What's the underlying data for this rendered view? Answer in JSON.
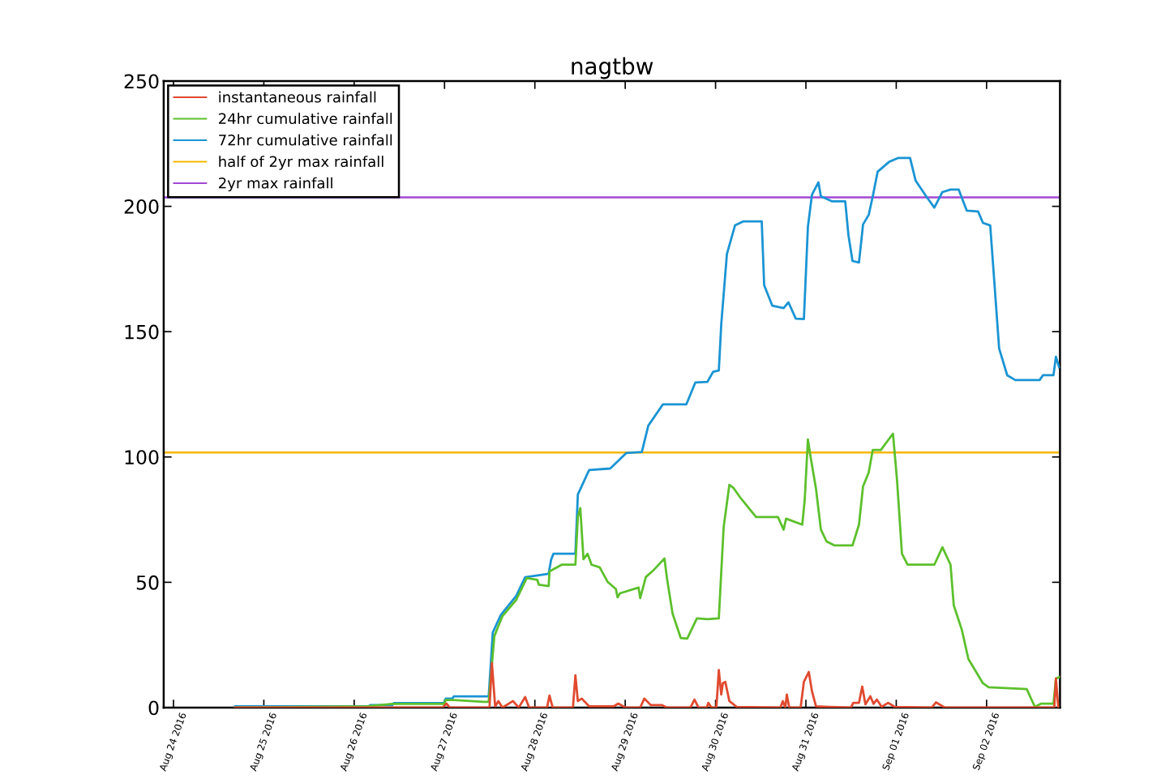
{
  "chart_data": {
    "type": "line",
    "title": "nagtbw",
    "xlim": [
      "2016-08-23T21:24",
      "2016-09-02T19:30"
    ],
    "xticks": [
      {
        "value": "2016-08-24",
        "label": "Aug 24 2016"
      },
      {
        "value": "2016-08-25",
        "label": "Aug 25 2016"
      },
      {
        "value": "2016-08-26",
        "label": "Aug 26 2016"
      },
      {
        "value": "2016-08-27",
        "label": "Aug 27 2016"
      },
      {
        "value": "2016-08-28",
        "label": "Aug 28 2016"
      },
      {
        "value": "2016-08-29",
        "label": "Aug 29 2016"
      },
      {
        "value": "2016-08-30",
        "label": "Aug 30 2016"
      },
      {
        "value": "2016-08-31",
        "label": "Aug 31 2016"
      },
      {
        "value": "2016-09-01",
        "label": "Sep 01 2016"
      },
      {
        "value": "2016-09-02",
        "label": "Sep 02 2016"
      }
    ],
    "ylim": [
      0,
      250
    ],
    "yticks": [
      0,
      50,
      100,
      150,
      200,
      250
    ],
    "grid": false,
    "legend": "top left",
    "marker": "none",
    "line_style": "solid",
    "series": [
      {
        "name": "instantaneous rainfall",
        "color": "#e04a2f",
        "x": [
          "2016-08-24T16:22",
          "2016-08-26T23:28",
          "2016-08-27T00:32",
          "2016-08-27T01:24",
          "2016-08-27T11:57",
          "2016-08-27T12:35",
          "2016-08-27T13:27",
          "2016-08-27T14:19",
          "2016-08-27T15:23",
          "2016-08-27T18:11",
          "2016-08-27T19:42",
          "2016-08-27T21:25",
          "2016-08-27T22:29",
          "2016-08-28T03:14",
          "2016-08-28T03:53",
          "2016-08-28T04:44",
          "2016-08-28T10:07",
          "2016-08-28T10:46",
          "2016-08-28T11:25",
          "2016-08-28T12:29",
          "2016-08-28T14:25",
          "2016-08-28T20:53",
          "2016-08-28T22:10",
          "2016-08-29T00:06",
          "2016-08-29T03:59",
          "2016-08-29T05:04",
          "2016-08-29T06:47",
          "2016-08-29T09:48",
          "2016-08-29T11:05",
          "2016-08-29T17:20",
          "2016-08-29T18:24",
          "2016-08-29T19:29",
          "2016-08-29T21:38",
          "2016-08-29T22:04",
          "2016-08-29T22:56",
          "2016-08-30T00:13",
          "2016-08-30T00:52",
          "2016-08-30T01:31",
          "2016-08-30T01:56",
          "2016-08-30T02:35",
          "2016-08-30T03:40",
          "2016-08-30T05:36",
          "2016-08-30T17:13",
          "2016-08-30T17:52",
          "2016-08-30T18:31",
          "2016-08-30T18:56",
          "2016-08-30T19:35",
          "2016-08-30T22:36",
          "2016-08-30T23:28",
          "2016-08-31T00:46",
          "2016-08-31T01:37",
          "2016-08-31T02:41",
          "2016-08-31T11:57",
          "2016-08-31T12:35",
          "2016-08-31T14:06",
          "2016-08-31T14:58",
          "2016-08-31T15:49",
          "2016-08-31T17:07",
          "2016-08-31T17:58",
          "2016-08-31T18:50",
          "2016-08-31T20:08",
          "2016-08-31T21:51",
          "2016-08-31T23:34",
          "2016-09-01T09:28",
          "2016-09-01T10:33",
          "2016-09-01T12:55",
          "2016-09-02T17:59",
          "2016-09-02T18:25",
          "2016-09-02T19:03"
        ],
        "values": [
          0,
          0,
          1.6,
          0,
          0,
          17.8,
          0.5,
          2.6,
          0,
          2.6,
          0,
          4.2,
          0,
          0,
          4.8,
          0,
          0,
          12.9,
          2.6,
          3.6,
          0.5,
          0.5,
          1.6,
          0,
          0,
          3.6,
          1,
          1,
          0,
          0,
          3.2,
          0,
          0,
          1.9,
          0,
          0,
          15,
          5.2,
          9.7,
          10.3,
          2.6,
          0.3,
          0,
          2.6,
          0,
          5.2,
          0,
          0,
          10.3,
          14.2,
          6.5,
          0.5,
          0,
          1.9,
          1.9,
          8.4,
          1.3,
          4.5,
          1.5,
          3.2,
          0.3,
          1.9,
          0.3,
          0,
          2.1,
          0,
          0,
          11.6,
          0
        ]
      },
      {
        "name": "24hr cumulative rainfall",
        "color": "#5cc02c",
        "x": [
          "2016-08-24T16:22",
          "2016-08-26T03:27",
          "2016-08-26T10:07",
          "2016-08-26T23:54",
          "2016-08-27T00:19",
          "2016-08-27T02:29",
          "2016-08-27T10:26",
          "2016-08-27T11:44",
          "2016-08-27T13:14",
          "2016-08-27T15:23",
          "2016-08-27T19:03",
          "2016-08-27T21:51",
          "2016-08-28T00:39",
          "2016-08-28T01:05",
          "2016-08-28T03:40",
          "2016-08-28T03:53",
          "2016-08-28T07:06",
          "2016-08-28T10:46",
          "2016-08-28T11:25",
          "2016-08-28T12:04",
          "2016-08-28T12:55",
          "2016-08-28T14:00",
          "2016-08-28T15:04",
          "2016-08-28T17:13",
          "2016-08-28T19:22",
          "2016-08-28T21:32",
          "2016-08-28T21:58",
          "2016-08-28T22:36",
          "2016-08-29T03:33",
          "2016-08-29T03:59",
          "2016-08-29T05:29",
          "2016-08-29T07:38",
          "2016-08-29T10:26",
          "2016-08-29T11:05",
          "2016-08-29T12:35",
          "2016-08-29T14:45",
          "2016-08-29T16:28",
          "2016-08-29T19:03",
          "2016-08-29T21:51",
          "2016-08-30T00:52",
          "2016-08-30T02:09",
          "2016-08-30T03:40",
          "2016-08-30T04:44",
          "2016-08-30T06:28",
          "2016-08-30T07:58",
          "2016-08-30T10:46",
          "2016-08-30T16:35",
          "2016-08-30T18:05",
          "2016-08-30T18:44",
          "2016-08-30T23:02",
          "2016-08-30T23:41",
          "2016-08-31T00:32",
          "2016-08-31T01:11",
          "2016-08-31T02:41",
          "2016-08-31T03:59",
          "2016-08-31T05:29",
          "2016-08-31T07:38",
          "2016-08-31T12:23",
          "2016-08-31T14:06",
          "2016-08-31T15:11",
          "2016-08-31T16:41",
          "2016-08-31T17:46",
          "2016-08-31T19:55",
          "2016-08-31T23:08",
          "2016-09-01T00:13",
          "2016-09-01T01:31",
          "2016-09-01T03:01",
          "2016-09-01T10:07",
          "2016-09-01T12:16",
          "2016-09-01T14:25",
          "2016-09-01T15:17",
          "2016-09-01T17:26",
          "2016-09-01T19:10",
          "2016-09-01T23:02",
          "2016-09-02T00:32",
          "2016-09-02T10:40",
          "2016-09-02T12:49",
          "2016-09-02T14:32",
          "2016-09-02T17:46",
          "2016-09-02T18:25",
          "2016-09-02T19:29"
        ],
        "values": [
          0,
          0.5,
          1.5,
          1.5,
          3,
          3,
          2.3,
          2.3,
          28.5,
          36.5,
          43,
          51.7,
          51,
          49,
          48.5,
          54.3,
          57,
          57,
          76,
          79.6,
          59.2,
          61.4,
          57,
          56,
          50.1,
          47.3,
          44,
          45.6,
          47.9,
          43.7,
          52.1,
          55,
          59.5,
          51.7,
          37.5,
          27.8,
          27.5,
          35.6,
          35.3,
          35.6,
          72,
          88.9,
          87.7,
          84,
          81.2,
          76,
          76,
          71,
          75.4,
          73,
          82.8,
          107,
          100.6,
          87.3,
          71,
          66.3,
          64.7,
          64.7,
          73,
          88.3,
          93.8,
          102.8,
          102.8,
          109.3,
          90.6,
          61.4,
          57,
          57,
          64,
          57,
          40.8,
          31,
          19.4,
          9.7,
          8.1,
          7.4,
          0.3,
          1.6,
          1.6,
          11.6,
          12.3
        ]
      },
      {
        "name": "72hr cumulative rainfall",
        "color": "#1a94d4",
        "x": [
          "2016-08-24T16:22",
          "2016-08-26T03:53",
          "2016-08-26T04:18",
          "2016-08-26T10:07",
          "2016-08-26T10:33",
          "2016-08-26T23:54",
          "2016-08-27T00:19",
          "2016-08-27T02:03",
          "2016-08-27T02:29",
          "2016-08-27T11:44",
          "2016-08-27T12:49",
          "2016-08-27T14:58",
          "2016-08-27T19:03",
          "2016-08-27T21:25",
          "2016-08-28T03:40",
          "2016-08-28T04:19",
          "2016-08-28T04:57",
          "2016-08-28T10:46",
          "2016-08-28T11:25",
          "2016-08-28T14:25",
          "2016-08-28T20:01",
          "2016-08-29T00:19",
          "2016-08-29T04:25",
          "2016-08-29T06:08",
          "2016-08-29T10:01",
          "2016-08-29T16:15",
          "2016-08-29T18:37",
          "2016-08-29T21:51",
          "2016-08-29T23:22",
          "2016-08-30T00:52",
          "2016-08-30T01:31",
          "2016-08-30T03:01",
          "2016-08-30T05:10",
          "2016-08-30T07:19",
          "2016-08-30T12:16",
          "2016-08-30T12:55",
          "2016-08-30T15:04",
          "2016-08-30T18:05",
          "2016-08-30T19:22",
          "2016-08-30T21:19",
          "2016-08-30T23:28",
          "2016-08-31T00:32",
          "2016-08-31T01:37",
          "2016-08-31T03:20",
          "2016-08-31T03:59",
          "2016-08-31T07:00",
          "2016-08-31T10:27",
          "2016-08-31T11:18",
          "2016-08-31T12:23",
          "2016-08-31T14:06",
          "2016-08-31T15:11",
          "2016-08-31T16:41",
          "2016-08-31T17:46",
          "2016-08-31T19:03",
          "2016-08-31T22:04",
          "2016-09-01T00:26",
          "2016-09-01T03:40",
          "2016-09-01T05:10",
          "2016-09-01T07:58",
          "2016-09-01T10:07",
          "2016-09-01T12:16",
          "2016-09-01T14:25",
          "2016-09-01T16:35",
          "2016-09-01T18:44",
          "2016-09-01T21:44",
          "2016-09-01T23:02",
          "2016-09-02T00:58",
          "2016-09-02T02:03",
          "2016-09-02T03:20",
          "2016-09-02T05:29",
          "2016-09-02T07:38",
          "2016-09-02T14:06",
          "2016-09-02T14:58",
          "2016-09-02T17:46",
          "2016-09-02T18:25",
          "2016-09-02T19:16"
        ],
        "values": [
          0.5,
          0.5,
          1,
          1,
          1.8,
          1.8,
          3.6,
          3.6,
          4.5,
          4.5,
          30,
          37,
          44.6,
          52,
          53.4,
          59,
          61.4,
          61.4,
          85,
          94.8,
          95.4,
          101.6,
          102,
          112.5,
          121,
          121,
          129.7,
          130,
          134,
          134.5,
          153,
          181,
          192.4,
          194,
          194,
          168.5,
          160.4,
          159.4,
          161.7,
          155.2,
          155,
          191.8,
          204.7,
          209.6,
          204,
          202,
          202,
          188.5,
          178.2,
          177.6,
          192.8,
          196.6,
          204,
          213.8,
          217.7,
          219.3,
          219.3,
          210.2,
          204,
          199.5,
          205.7,
          206.7,
          206.7,
          198.3,
          198,
          193.4,
          192.4,
          170,
          143.3,
          132.6,
          130.7,
          130.7,
          132.6,
          132.6,
          140,
          135.8
        ]
      }
    ],
    "ref_lines": [
      {
        "axis": "y",
        "value": 101.8,
        "label": "half of 2yr max rainfall",
        "color": "#f5b700",
        "line_style": "solid"
      },
      {
        "axis": "y",
        "value": 203.6,
        "label": "2yr max rainfall",
        "color": "#a347d6",
        "line_style": "solid"
      }
    ]
  }
}
